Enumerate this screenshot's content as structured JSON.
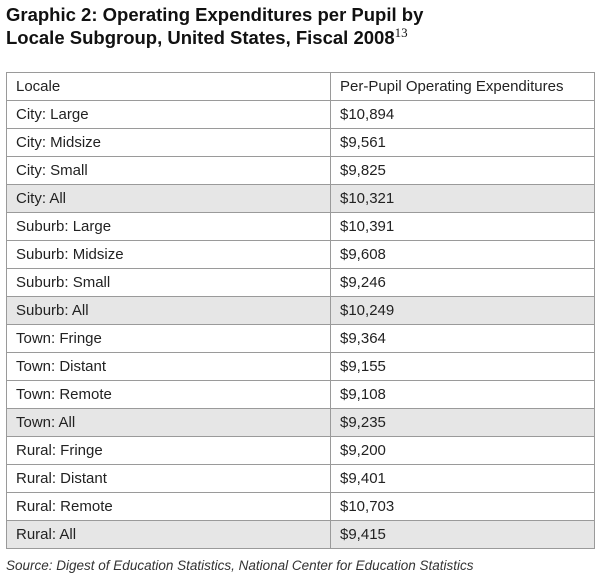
{
  "title": [
    "Graphic 2: Operating Expenditures per Pupil by",
    "Locale Subgroup, United States, Fiscal 2008"
  ],
  "title_note": "13",
  "table": {
    "header": [
      "Locale",
      "Per-Pupil Operating Expenditures"
    ],
    "rows": [
      [
        "City: Large",
        "$10,894"
      ],
      [
        "City: Midsize",
        "$9,561"
      ],
      [
        "City: Small",
        "$9,825"
      ],
      [
        "City: All",
        "$10,321"
      ],
      [
        "Suburb: Large",
        "$10,391"
      ],
      [
        "Suburb: Midsize",
        "$9,608"
      ],
      [
        "Suburb: Small",
        "$9,246"
      ],
      [
        "Suburb: All",
        "$10,249"
      ],
      [
        "Town: Fringe",
        "$9,364"
      ],
      [
        "Town: Distant",
        "$9,155"
      ],
      [
        "Town: Remote",
        "$9,108"
      ],
      [
        "Town: All",
        "$9,235"
      ],
      [
        "Rural: Fringe",
        "$9,200"
      ],
      [
        "Rural: Distant",
        "$9,401"
      ],
      [
        "Rural: Remote",
        "$10,703"
      ],
      [
        "Rural: All",
        "$9,415"
      ]
    ]
  },
  "source": "Source: Digest of Education Statistics, National Center for Education Statistics"
}
